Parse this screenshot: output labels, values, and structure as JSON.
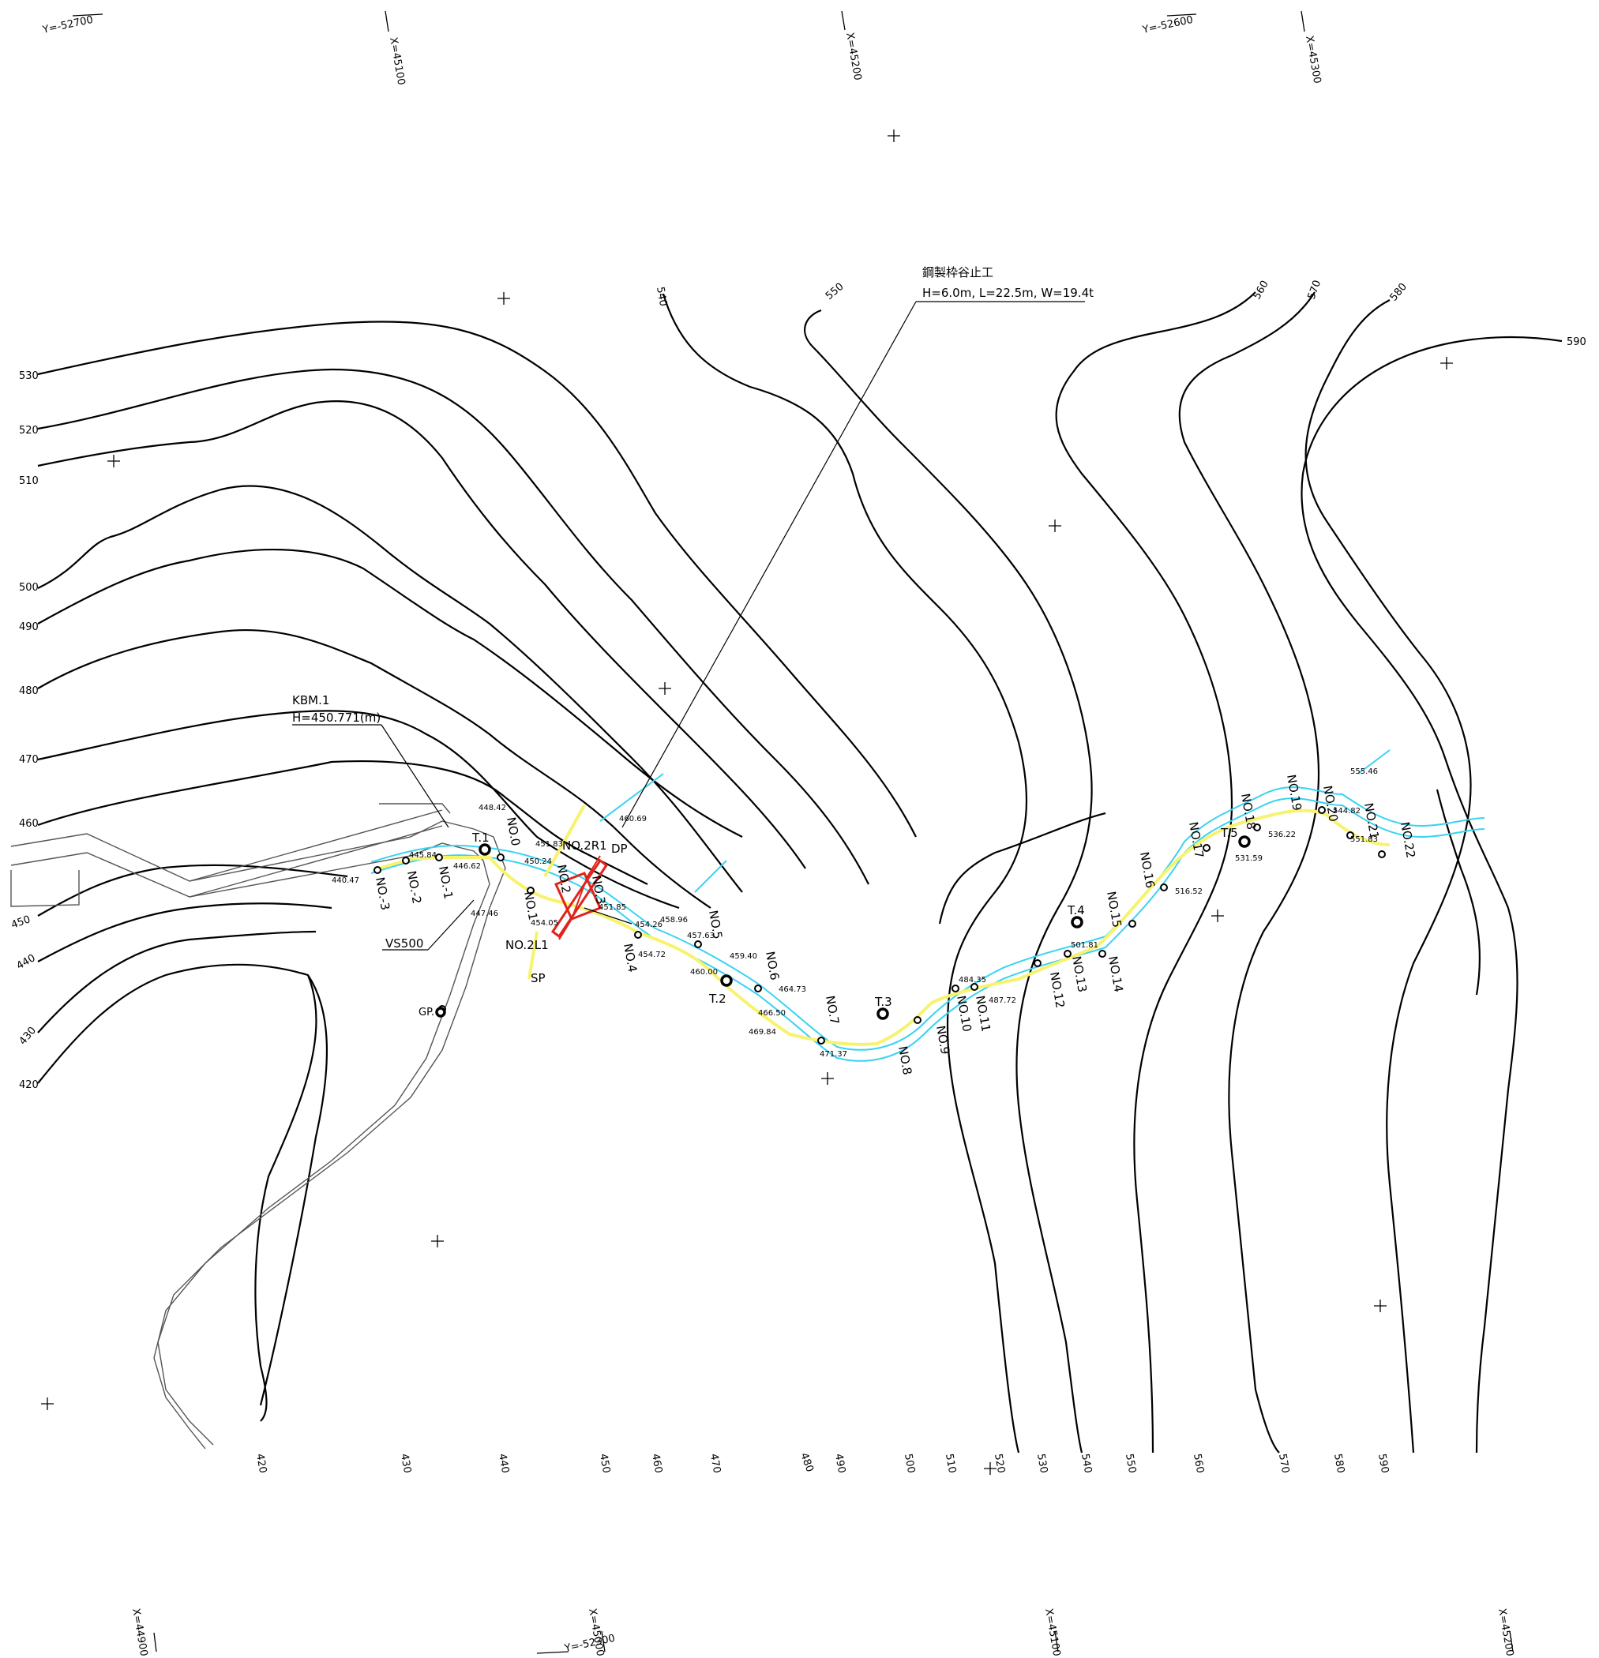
{
  "grid_labels": [
    {
      "text": "Y=-52700"
    },
    {
      "text": "X=45100"
    },
    {
      "text": "X=45200"
    },
    {
      "text": "Y=-52600"
    },
    {
      "text": "X=45300"
    },
    {
      "text": "X=44900"
    },
    {
      "text": "X=45000"
    },
    {
      "text": "Y=-52300"
    },
    {
      "text": "X=45100"
    },
    {
      "text": "X=45200"
    }
  ],
  "contours_left": [
    "530",
    "520",
    "510",
    "500",
    "490",
    "480",
    "470",
    "460",
    "450",
    "440",
    "430",
    "420"
  ],
  "contours_top": [
    "540",
    "550",
    "560",
    "570",
    "580",
    "590"
  ],
  "contours_bottom": [
    "420",
    "430",
    "440",
    "450",
    "460",
    "470",
    "480",
    "490",
    "500",
    "510",
    "520",
    "530",
    "540",
    "550",
    "560",
    "570",
    "580",
    "590"
  ],
  "dam": {
    "title": "鋼製枠谷止工",
    "spec": "H=6.0m, L=22.5m, W=19.4t"
  },
  "benchmark": {
    "name": "KBM.1",
    "height": "H=450.771(m)"
  },
  "vs": "VS500",
  "gp": "GP.",
  "traverse": [
    "T.1",
    "T.2",
    "T.3",
    "T.4",
    "T.5"
  ],
  "stations": [
    "NO.-3",
    "NO.-2",
    "NO.-1",
    "NO.0",
    "NO.1",
    "NO.2",
    "NO.2R1",
    "NO.2L1",
    "DP",
    "SP",
    "NO.3",
    "NO.4",
    "NO.5",
    "NO.6",
    "NO.7",
    "NO.8",
    "NO.9",
    "NO.10",
    "NO.11",
    "NO.12",
    "NO.13",
    "NO.14",
    "NO.15",
    "NO.16",
    "NO.17",
    "NO.18",
    "NO.19",
    "NO.20",
    "NO.21",
    "NO.22"
  ],
  "elevations": [
    "440.47",
    "445.84",
    "446.62",
    "448.42",
    "447.46",
    "451.83",
    "450.24",
    "460.69",
    "454.05",
    "451.85",
    "454.26",
    "454.72",
    "458.96",
    "457.63",
    "459.40",
    "460.00",
    "464.73",
    "466.50",
    "469.84",
    "471.37",
    "484.35",
    "487.72",
    "501.81",
    "516.52",
    "531.59",
    "536.22",
    "544.82",
    "551.83",
    "555.46"
  ]
}
